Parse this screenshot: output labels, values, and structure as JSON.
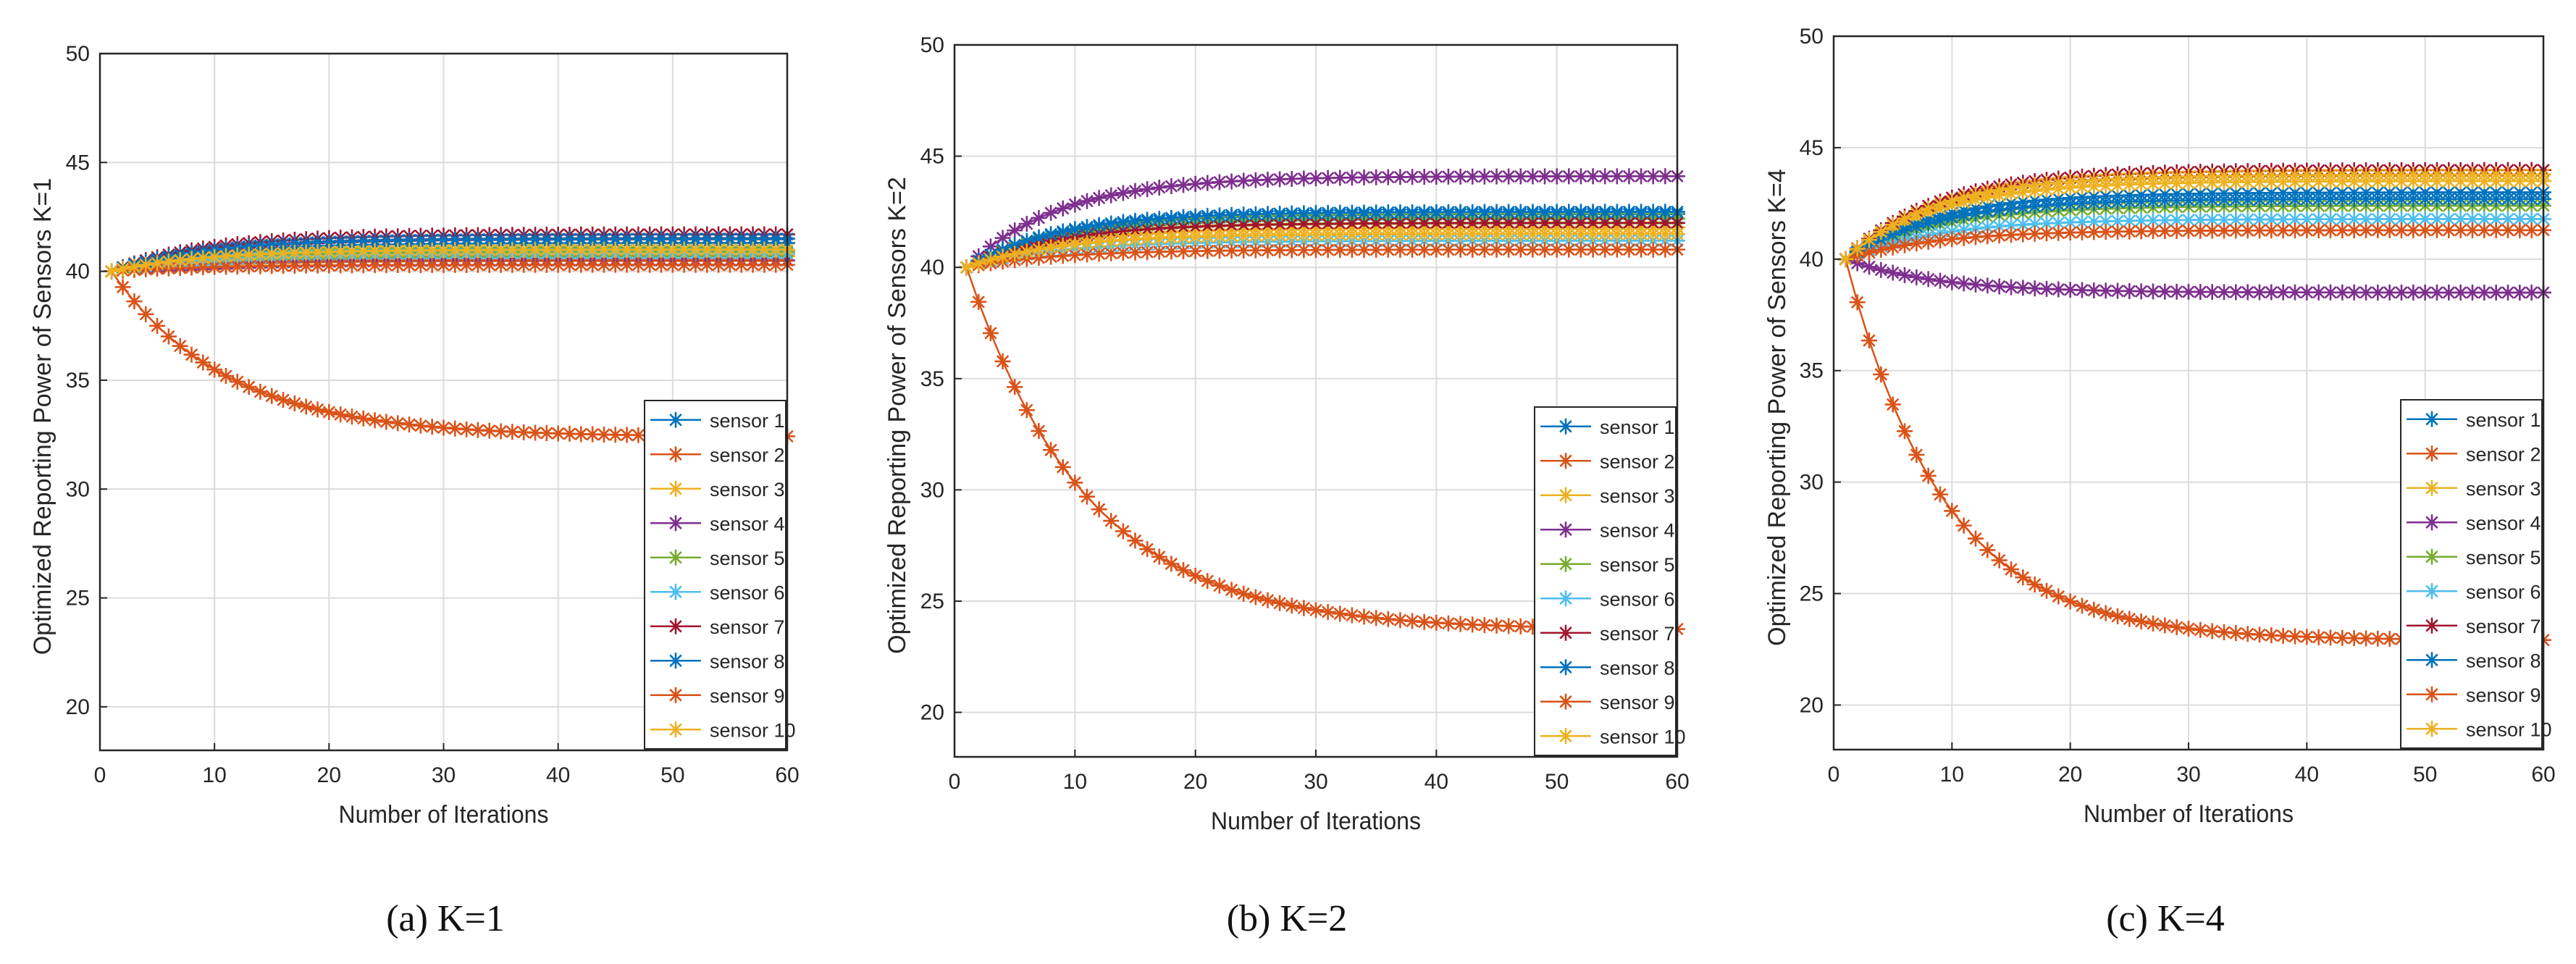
{
  "chart_data": [
    {
      "type": "line",
      "caption": "(a)  K=1",
      "xlabel": "Number of Iterations",
      "ylabel": "Optimized Reporting Power of Sensors K=1",
      "xlim": [
        0,
        60
      ],
      "ylim": [
        18,
        50
      ],
      "xticks": [
        "0",
        "10",
        "20",
        "30",
        "40",
        "50",
        "60"
      ],
      "yticks": [
        "20",
        "25",
        "30",
        "35",
        "40",
        "45",
        "50"
      ],
      "grid": true,
      "legend_position": "bottom-right",
      "x_range": [
        1,
        60
      ],
      "series": [
        {
          "name": "sensor 1",
          "start": 40,
          "final": 41.3,
          "rate": 0.12
        },
        {
          "name": "sensor 2",
          "start": 40,
          "final": 32.4,
          "rate": 0.1
        },
        {
          "name": "sensor 3",
          "start": 40,
          "final": 40.7,
          "rate": 0.12
        },
        {
          "name": "sensor 4",
          "start": 40,
          "final": 40.5,
          "rate": 0.12
        },
        {
          "name": "sensor 5",
          "start": 40,
          "final": 40.9,
          "rate": 0.12
        },
        {
          "name": "sensor 6",
          "start": 40,
          "final": 40.8,
          "rate": 0.12
        },
        {
          "name": "sensor 7",
          "start": 40,
          "final": 41.7,
          "rate": 0.12
        },
        {
          "name": "sensor 8",
          "start": 40,
          "final": 41.5,
          "rate": 0.12
        },
        {
          "name": "sensor 9",
          "start": 40,
          "final": 40.3,
          "rate": 0.12
        },
        {
          "name": "sensor 10",
          "start": 40,
          "final": 41.0,
          "rate": 0.12
        }
      ]
    },
    {
      "type": "line",
      "caption": "(b)  K=2",
      "xlabel": "Number of Iterations",
      "ylabel": "Optimized Reporting Power of Sensors K=2",
      "xlim": [
        0,
        60
      ],
      "ylim": [
        18,
        50
      ],
      "xticks": [
        "0",
        "10",
        "20",
        "30",
        "40",
        "50",
        "60"
      ],
      "yticks": [
        "20",
        "25",
        "30",
        "35",
        "40",
        "45",
        "50"
      ],
      "grid": true,
      "legend_position": "bottom-right",
      "x_range": [
        1,
        60
      ],
      "series": [
        {
          "name": "sensor 1",
          "start": 40,
          "final": 42.4,
          "rate": 0.13
        },
        {
          "name": "sensor 2",
          "start": 40,
          "final": 23.7,
          "rate": 0.1
        },
        {
          "name": "sensor 3",
          "start": 40,
          "final": 41.8,
          "rate": 0.13
        },
        {
          "name": "sensor 4",
          "start": 40,
          "final": 44.1,
          "rate": 0.13
        },
        {
          "name": "sensor 5",
          "start": 40,
          "final": 42.2,
          "rate": 0.13
        },
        {
          "name": "sensor 6",
          "start": 40,
          "final": 41.2,
          "rate": 0.13
        },
        {
          "name": "sensor 7",
          "start": 40,
          "final": 42.0,
          "rate": 0.13
        },
        {
          "name": "sensor 8",
          "start": 40,
          "final": 42.5,
          "rate": 0.13
        },
        {
          "name": "sensor 9",
          "start": 40,
          "final": 40.8,
          "rate": 0.13
        },
        {
          "name": "sensor 10",
          "start": 40,
          "final": 41.5,
          "rate": 0.13
        }
      ]
    },
    {
      "type": "line",
      "caption": "(c)  K=4",
      "xlabel": "Number of Iterations",
      "ylabel": "Optimized Reporting Power of Sensors K=4",
      "xlim": [
        0,
        60
      ],
      "ylim": [
        18,
        50
      ],
      "xticks": [
        "0",
        "10",
        "20",
        "30",
        "40",
        "50",
        "60"
      ],
      "yticks": [
        "20",
        "25",
        "30",
        "35",
        "40",
        "45",
        "50"
      ],
      "grid": true,
      "legend_position": "bottom-right",
      "x_range": [
        1,
        60
      ],
      "series": [
        {
          "name": "sensor 1",
          "start": 40,
          "final": 43.0,
          "rate": 0.13
        },
        {
          "name": "sensor 2",
          "start": 40,
          "final": 22.9,
          "rate": 0.12
        },
        {
          "name": "sensor 3",
          "start": 40,
          "final": 43.5,
          "rate": 0.13
        },
        {
          "name": "sensor 4",
          "start": 40,
          "final": 38.5,
          "rate": 0.13
        },
        {
          "name": "sensor 5",
          "start": 40,
          "final": 42.4,
          "rate": 0.13
        },
        {
          "name": "sensor 6",
          "start": 40,
          "final": 41.8,
          "rate": 0.13
        },
        {
          "name": "sensor 7",
          "start": 40,
          "final": 44.0,
          "rate": 0.13
        },
        {
          "name": "sensor 8",
          "start": 40,
          "final": 42.7,
          "rate": 0.13
        },
        {
          "name": "sensor 9",
          "start": 40,
          "final": 41.3,
          "rate": 0.13
        },
        {
          "name": "sensor 10",
          "start": 40,
          "final": 43.8,
          "rate": 0.13
        }
      ]
    }
  ],
  "colors": {
    "sensor 1": "#0072BD",
    "sensor 2": "#D95319",
    "sensor 3": "#EDB120",
    "sensor 4": "#7E2F8E",
    "sensor 5": "#77AC30",
    "sensor 6": "#4DBEEE",
    "sensor 7": "#A2142F",
    "sensor 8": "#0072BD",
    "sensor 9": "#D95319",
    "sensor 10": "#EDB120",
    "grid": "#DCDCDC",
    "axes": "#262626",
    "text": "#262626"
  },
  "marker": "asterisk"
}
